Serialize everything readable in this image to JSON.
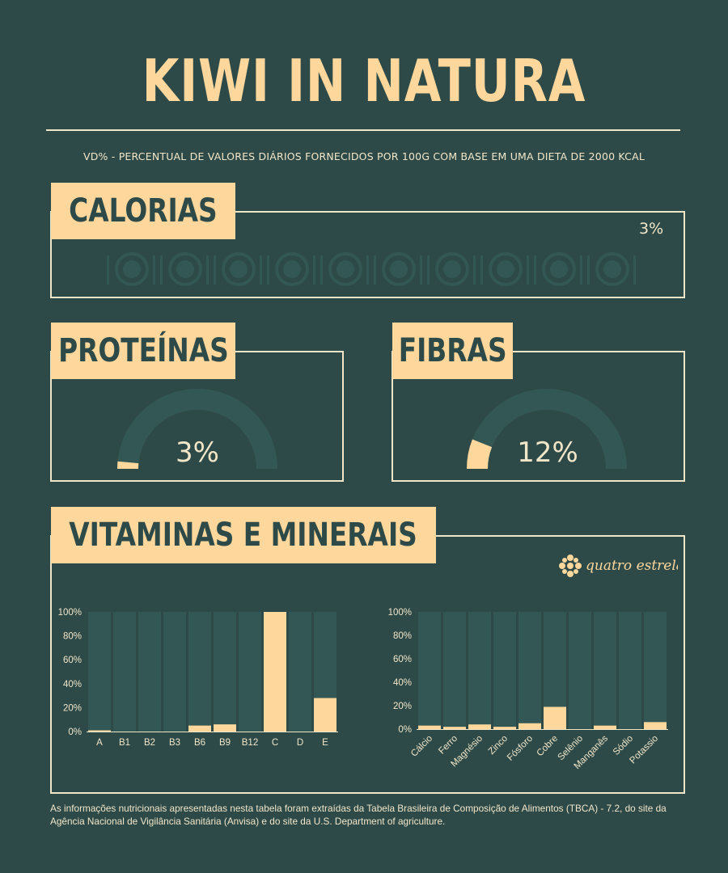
{
  "title": "KIWI IN NATURA",
  "subtitle": "VD% - PERCENTUAL DE VALORES DIÁRIOS FORNECIDOS POR 100G COM BASE EM UMA DIETA DE 2000 KCAL",
  "calorias": {
    "label": "CALORIAS",
    "value": "3%",
    "percent": 3
  },
  "proteinas": {
    "label": "PROTEÍNAS",
    "value": "3%",
    "percent": 3
  },
  "fibras": {
    "label": "FIBRAS",
    "value": "12%",
    "percent": 12
  },
  "vitaminas": {
    "label": "VITAMINAS E MINERAIS"
  },
  "logo": {
    "text": "quatro estrelas"
  },
  "colors": {
    "background": "#2d4a48",
    "accent": "#fdd79b",
    "track": "#335754",
    "line": "#f2e6c9"
  },
  "chart_data": [
    {
      "type": "bar",
      "categories": [
        "A",
        "B1",
        "B2",
        "B3",
        "B6",
        "B9",
        "B12",
        "C",
        "D",
        "E"
      ],
      "values": [
        1,
        0,
        0,
        0,
        5,
        6,
        0,
        100,
        0,
        28
      ],
      "yticks": [
        "0%",
        "20%",
        "40%",
        "60%",
        "80%",
        "100%"
      ],
      "ylim": [
        0,
        100
      ]
    },
    {
      "type": "bar",
      "categories": [
        "Cálcio",
        "Ferro",
        "Magnésio",
        "Zinco",
        "Fósforo",
        "Cobre",
        "Selênio",
        "Manganês",
        "Sódio",
        "Potassio"
      ],
      "values": [
        3,
        2,
        4,
        2,
        5,
        19,
        0,
        3,
        0,
        6
      ],
      "yticks": [
        "0%",
        "20%",
        "40%",
        "60%",
        "80%",
        "100%"
      ],
      "ylim": [
        0,
        100
      ]
    }
  ],
  "footnote": "As informações nutricionais apresentadas nesta tabela foram extraídas da Tabela Brasileira de Composição de Alimentos (TBCA) - 7.2, do site da Agência Nacional de Vigilância Sanitária (Anvisa) e do site da U.S. Department of agriculture."
}
